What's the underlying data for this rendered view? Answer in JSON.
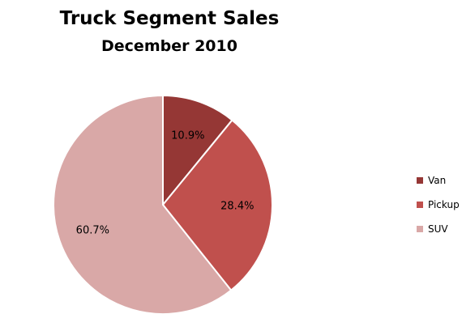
{
  "chart_data": {
    "type": "pie",
    "title": "Truck Segment Sales",
    "subtitle": "December 2010",
    "categories": [
      "Van",
      "Pickup",
      "SUV"
    ],
    "values": [
      10.9,
      28.4,
      60.7
    ],
    "labels": [
      "10.9%",
      "28.4%",
      "60.7%"
    ],
    "colors": [
      "#953735",
      "#c0504d",
      "#d9a8a7"
    ],
    "legend_position": "right"
  }
}
